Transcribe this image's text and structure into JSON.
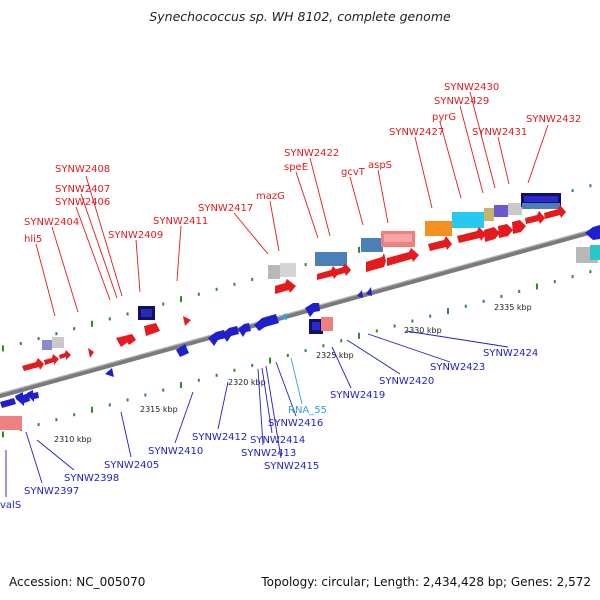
{
  "title": "Synechococcus sp. WH 8102, complete genome",
  "footer": {
    "accession": "Accession: NC_005070",
    "topology": "Topology: circular; Length: 2,434,428 bp; Genes: 2,572"
  },
  "colors": {
    "forward": "#e41a1c",
    "reverse": "#1f1fcc",
    "rna": "#33a0e0",
    "backbone": "#7a7a7a",
    "tick": "#2e8b2e"
  },
  "scale_labels": [
    "2310 kbp",
    "2315 kbp",
    "2320 kbp",
    "2325 kbp",
    "2330 kbp",
    "2335 kbp"
  ],
  "forward_labels": [
    "hli5",
    "SYNW2404",
    "SYNW2406",
    "SYNW2407",
    "SYNW2408",
    "SYNW2409",
    "SYNW2411",
    "SYNW2417",
    "mazG",
    "speE",
    "SYNW2422",
    "gcvT",
    "aspS",
    "SYNW2427",
    "pyrG",
    "SYNW2429",
    "SYNW2430",
    "SYNW2431",
    "SYNW2432"
  ],
  "reverse_labels": [
    "valS",
    "SYNW2397",
    "SYNW2398",
    "SYNW2405",
    "SYNW2410",
    "SYNW2412",
    "SYNW2413",
    "SYNW2414",
    "SYNW2415",
    "SYNW2416",
    "RNA_55",
    "SYNW2419",
    "SYNW2420",
    "SYNW2423",
    "SYNW2424"
  ]
}
